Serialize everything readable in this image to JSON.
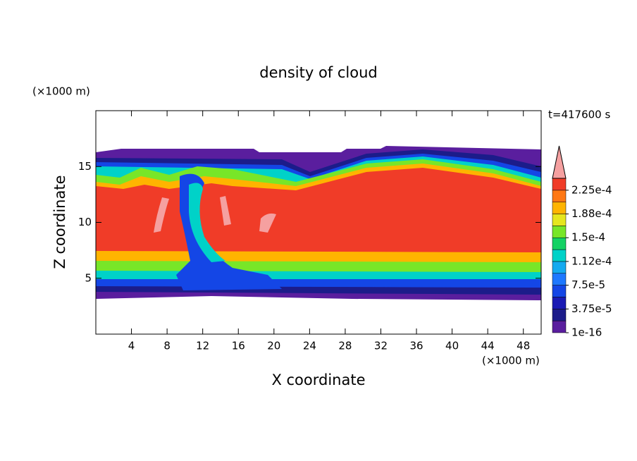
{
  "chart_data": {
    "type": "contour",
    "title": "density of cloud",
    "time_label": "t=417600 s",
    "x_label": "X coordinate",
    "y_label": "Z coordinate",
    "x_unit": "(×1000 m)",
    "y_unit": "(×1000 m)",
    "xlim": [
      0,
      50
    ],
    "ylim": [
      0,
      20
    ],
    "xticks": [
      4,
      8,
      12,
      16,
      20,
      24,
      28,
      32,
      36,
      40,
      44,
      48
    ],
    "yticks": [
      5,
      10,
      15
    ],
    "colorbar": {
      "clim": [
        0,
        0.00024375
      ],
      "colors": [
        "#5a1e9e",
        "#1c1c8a",
        "#1a1ab4",
        "#1446e6",
        "#1e78ff",
        "#14aaf0",
        "#00d2c8",
        "#14d264",
        "#78e628",
        "#e6e61e",
        "#ffb400",
        "#ff7814",
        "#f03c28"
      ],
      "extend_color": "#f5a0a0",
      "ticks": [
        {
          "value": 1e-16,
          "label": "1e-16"
        },
        {
          "value": 3.75e-05,
          "label": "3.75e-5"
        },
        {
          "value": 7.5e-05,
          "label": "7.5e-5"
        },
        {
          "value": 0.0001125,
          "label": "1.12e-4"
        },
        {
          "value": 0.00015,
          "label": "1.5e-4"
        },
        {
          "value": 0.0001875,
          "label": "1.88e-4"
        },
        {
          "value": 0.000225,
          "label": "2.25e-4"
        }
      ]
    }
  }
}
